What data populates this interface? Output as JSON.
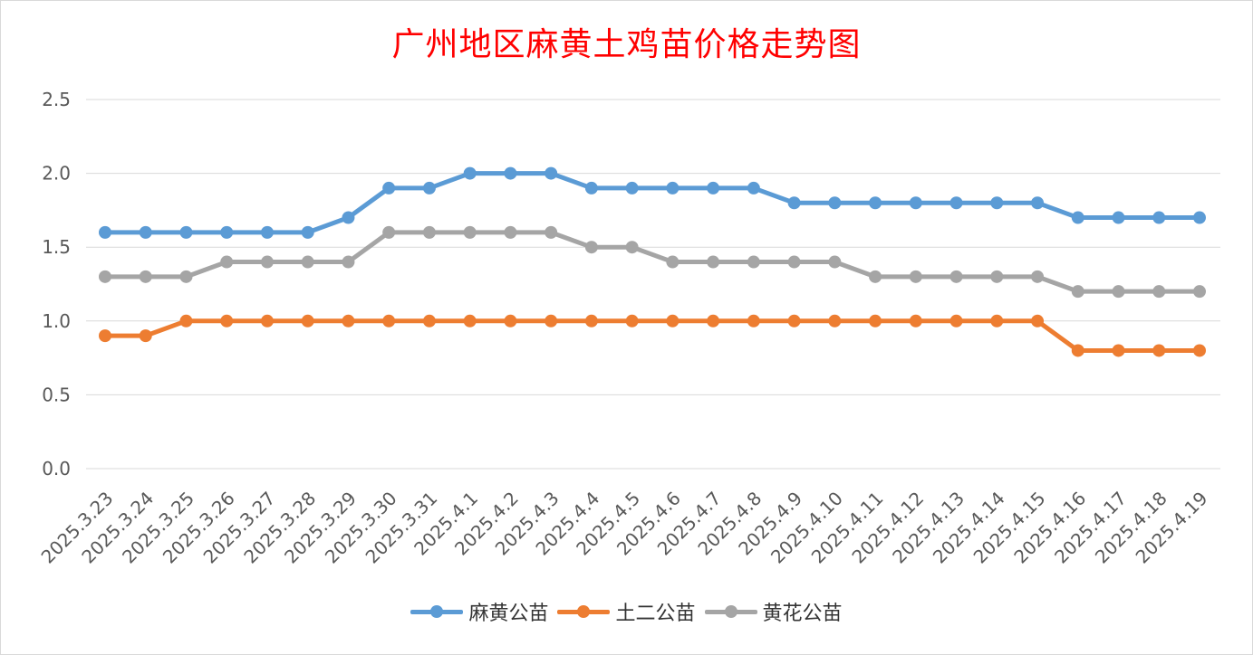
{
  "chart_data": {
    "type": "line",
    "title": "广州地区麻黄土鸡苗价格走势图",
    "xlabel": "",
    "ylabel": "",
    "ylim": [
      0,
      2.5
    ],
    "yticks": [
      "0.0",
      "0.5",
      "1.0",
      "1.5",
      "2.0",
      "2.5"
    ],
    "grid": true,
    "legend_position": "bottom",
    "categories": [
      "2025.3.23",
      "2025.3.24",
      "2025.3.25",
      "2025.3.26",
      "2025.3.27",
      "2025.3.28",
      "2025.3.29",
      "2025.3.30",
      "2025.3.31",
      "2025.4.1",
      "2025.4.2",
      "2025.4.3",
      "2025.4.4",
      "2025.4.5",
      "2025.4.6",
      "2025.4.7",
      "2025.4.8",
      "2025.4.9",
      "2025.4.10",
      "2025.4.11",
      "2025.4.12",
      "2025.4.13",
      "2025.4.14",
      "2025.4.15",
      "2025.4.16",
      "2025.4.17",
      "2025.4.18",
      "2025.4.19"
    ],
    "series": [
      {
        "name": "麻黄公苗",
        "color": "#5b9bd5",
        "values": [
          1.6,
          1.6,
          1.6,
          1.6,
          1.6,
          1.6,
          1.7,
          1.9,
          1.9,
          2.0,
          2.0,
          2.0,
          1.9,
          1.9,
          1.9,
          1.9,
          1.9,
          1.8,
          1.8,
          1.8,
          1.8,
          1.8,
          1.8,
          1.8,
          1.7,
          1.7,
          1.7,
          1.7
        ]
      },
      {
        "name": "土二公苗",
        "color": "#ed7d31",
        "values": [
          0.9,
          0.9,
          1.0,
          1.0,
          1.0,
          1.0,
          1.0,
          1.0,
          1.0,
          1.0,
          1.0,
          1.0,
          1.0,
          1.0,
          1.0,
          1.0,
          1.0,
          1.0,
          1.0,
          1.0,
          1.0,
          1.0,
          1.0,
          1.0,
          0.8,
          0.8,
          0.8,
          0.8
        ]
      },
      {
        "name": "黄花公苗",
        "color": "#a5a5a5",
        "values": [
          1.3,
          1.3,
          1.3,
          1.4,
          1.4,
          1.4,
          1.4,
          1.6,
          1.6,
          1.6,
          1.6,
          1.6,
          1.5,
          1.5,
          1.4,
          1.4,
          1.4,
          1.4,
          1.4,
          1.3,
          1.3,
          1.3,
          1.3,
          1.3,
          1.2,
          1.2,
          1.2,
          1.2
        ]
      }
    ]
  }
}
